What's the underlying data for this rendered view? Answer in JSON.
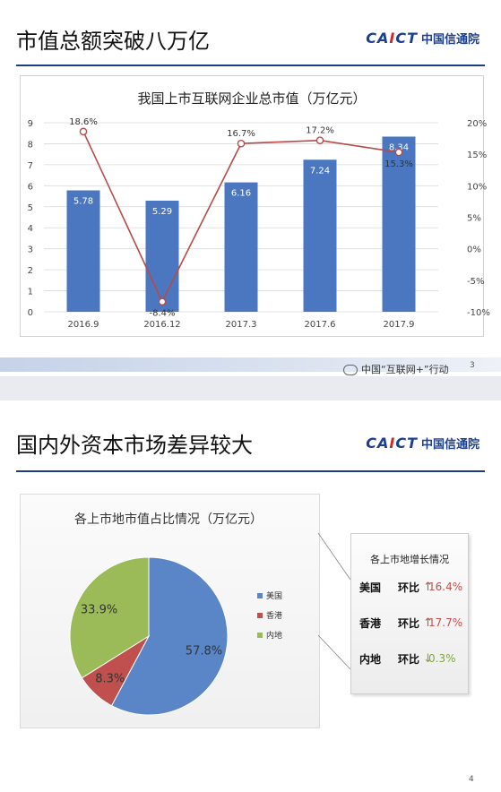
{
  "slide1": {
    "title": "市值总额突破八万亿",
    "logo_en_a": "CA",
    "logo_en_b": "I",
    "logo_en_c": "CT",
    "logo_cn": "中国信通院",
    "page": "3"
  },
  "slide2": {
    "title": "国内外资本市场差异较大",
    "logo_en_a": "CA",
    "logo_en_b": "I",
    "logo_en_c": "CT",
    "logo_cn": "中国信通院",
    "page": "4"
  },
  "chart_data": [
    {
      "type": "bar",
      "title": "我国上市互联网企业总市值（万亿元）",
      "categories": [
        "2016.9",
        "2016.12",
        "2017.3",
        "2017.6",
        "2017.9"
      ],
      "values": [
        5.78,
        5.29,
        6.16,
        7.24,
        8.34
      ],
      "value_labels": [
        "5.78",
        "5.29",
        "6.16",
        "7.24",
        "8.34"
      ],
      "ylim": [
        0,
        9
      ],
      "yticks": [
        "0",
        "1",
        "2",
        "3",
        "4",
        "5",
        "6",
        "7",
        "8",
        "9"
      ],
      "secondary_line": {
        "values": [
          18.6,
          -8.4,
          16.7,
          17.2,
          15.3
        ],
        "labels": [
          "18.6%",
          "-8.4%",
          "16.7%",
          "17.2%",
          "15.3%"
        ],
        "ylim": [
          -10,
          20
        ],
        "yticks": [
          "-10%",
          "-5%",
          "0%",
          "5%",
          "10%",
          "15%",
          "20%"
        ]
      },
      "grid": true,
      "colors": {
        "bar": "#4a77c0",
        "line": "#b84a48"
      }
    },
    {
      "type": "pie",
      "title": "各上市地市值占比情况（万亿元）",
      "slices": [
        {
          "name": "美国",
          "value": 57.8,
          "label": "57.8%",
          "color": "#5a86c8"
        },
        {
          "name": "香港",
          "value": 8.3,
          "label": "8.3%",
          "color": "#c0504d"
        },
        {
          "name": "内地",
          "value": 33.9,
          "label": "33.9%",
          "color": "#9bbb59"
        }
      ],
      "legend": "right"
    }
  ],
  "growth": {
    "title": "各上市地增长情况",
    "rows": [
      {
        "market": "美国",
        "label": "环比",
        "arrow": "↑",
        "value": "16.4%",
        "color": "#c0504d"
      },
      {
        "market": "香港",
        "label": "环比",
        "arrow": "↑",
        "value": "17.7%",
        "color": "#c0504d"
      },
      {
        "market": "内地",
        "label": "环比",
        "arrow": "↓",
        "value": "0.3%",
        "color": "#7fa83a"
      }
    ]
  },
  "watermark": {
    "text": "中国“互联网+”行动"
  }
}
